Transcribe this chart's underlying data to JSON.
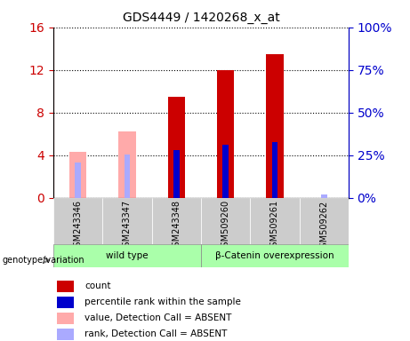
{
  "title": "GDS4449 / 1420268_x_at",
  "samples": [
    "GSM243346",
    "GSM243347",
    "GSM243348",
    "GSM509260",
    "GSM509261",
    "GSM509262"
  ],
  "count_values": [
    null,
    null,
    9.5,
    12.0,
    13.5,
    null
  ],
  "rank_values": [
    null,
    null,
    4.5,
    5.0,
    5.2,
    null
  ],
  "absent_value": [
    4.3,
    6.2,
    null,
    null,
    null,
    null
  ],
  "absent_rank": [
    3.3,
    4.1,
    null,
    null,
    null,
    0.3
  ],
  "ylim_left": [
    0,
    16
  ],
  "ylim_right": [
    0,
    100
  ],
  "yticks_left": [
    0,
    4,
    8,
    12,
    16
  ],
  "yticks_right": [
    0,
    25,
    50,
    75,
    100
  ],
  "ytick_labels_right": [
    "0%",
    "25%",
    "50%",
    "75%",
    "100%"
  ],
  "color_red": "#cc0000",
  "color_blue": "#0000cc",
  "color_pink": "#ffaaaa",
  "color_lightblue": "#aaaaff",
  "color_bg_plot": "#ffffff",
  "color_bg_label": "#cccccc",
  "color_bg_genotype": "#aaffaa",
  "genotype_groups": [
    {
      "label": "wild type",
      "start": 0,
      "end": 3
    },
    {
      "label": "β-Catenin overexpression",
      "start": 3,
      "end": 6
    }
  ],
  "bar_width": 0.35,
  "rank_bar_width": 0.12,
  "legend_items": [
    {
      "color": "#cc0000",
      "label": "count"
    },
    {
      "color": "#0000cc",
      "label": "percentile rank within the sample"
    },
    {
      "color": "#ffaaaa",
      "label": "value, Detection Call = ABSENT"
    },
    {
      "color": "#aaaaff",
      "label": "rank, Detection Call = ABSENT"
    }
  ]
}
